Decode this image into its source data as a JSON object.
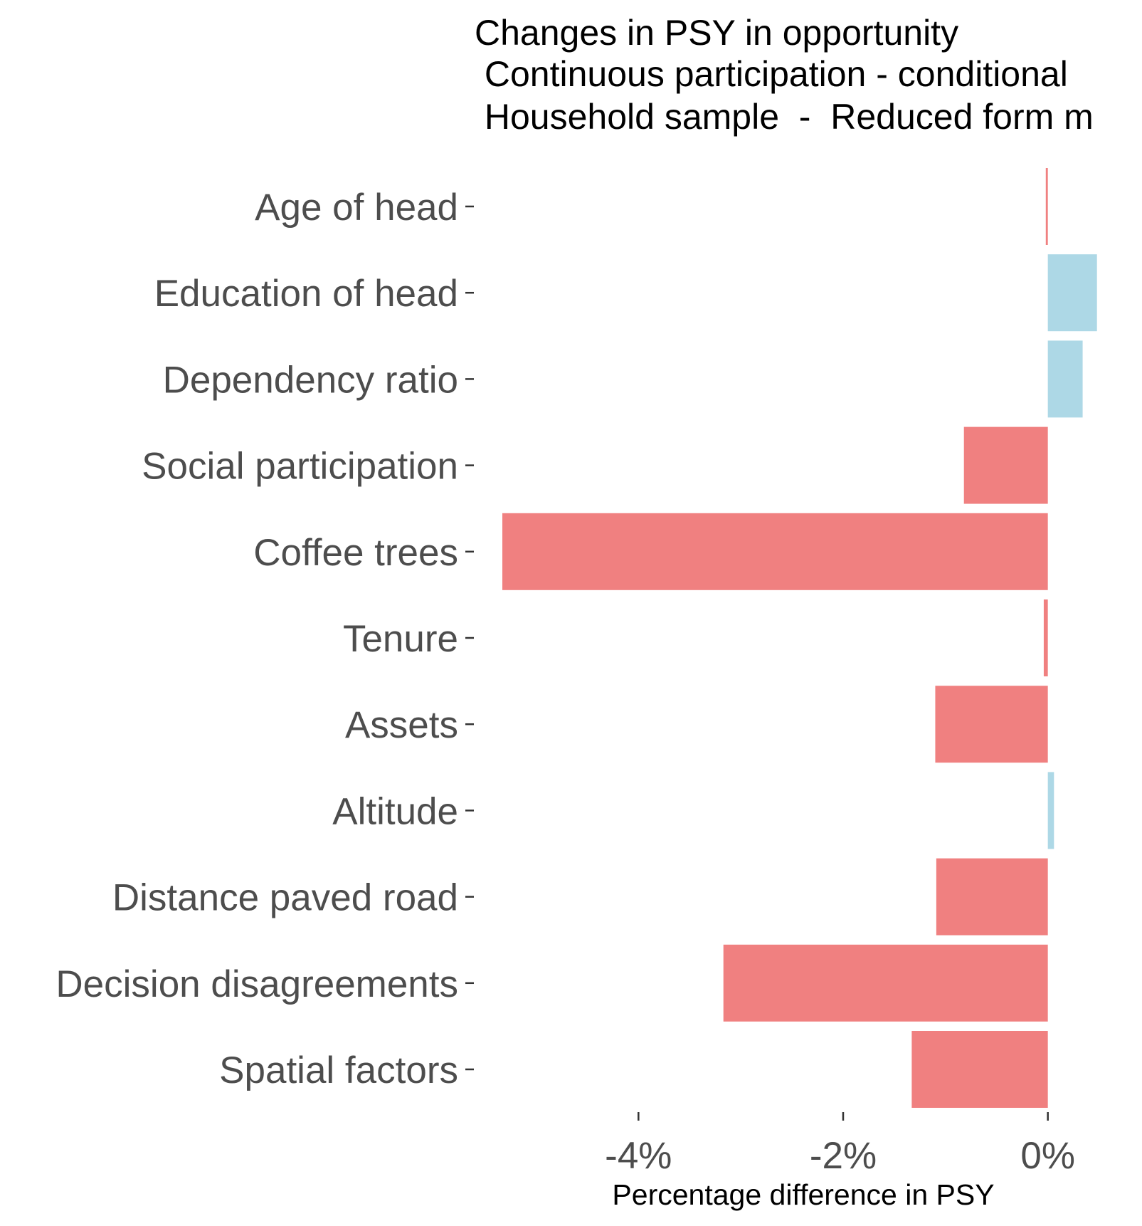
{
  "chart_data": {
    "type": "bar",
    "orientation": "horizontal",
    "title": "Changes in PSY in opportunity",
    "subtitle_lines": [
      " Continuous participation - conditional",
      " Household sample  -  Reduced form m"
    ],
    "categories": [
      "Age of head",
      "Education of head",
      "Dependency ratio",
      "Social participation",
      "Coffee trees",
      "Tenure",
      "Assets",
      "Altitude",
      "Distance paved road",
      "Decision disagreements",
      "Spatial factors"
    ],
    "values": [
      -0.02,
      0.48,
      0.34,
      -0.82,
      -5.33,
      -0.04,
      -1.1,
      0.06,
      -1.09,
      -3.17,
      -1.33
    ],
    "xlabel": "Percentage difference in PSY",
    "ylabel": "",
    "x_ticks": [
      -4,
      -2,
      0
    ],
    "x_tick_labels": [
      "-4%",
      "-2%",
      "0%"
    ],
    "xlim": [
      -5.33,
      0.92
    ],
    "grid": false,
    "legend": "none",
    "colors": {
      "negative": "#f08080",
      "positive": "#add8e6",
      "label_text": "#4d4d4d",
      "title_text": "#000000",
      "tick_mark": "#333333"
    }
  }
}
